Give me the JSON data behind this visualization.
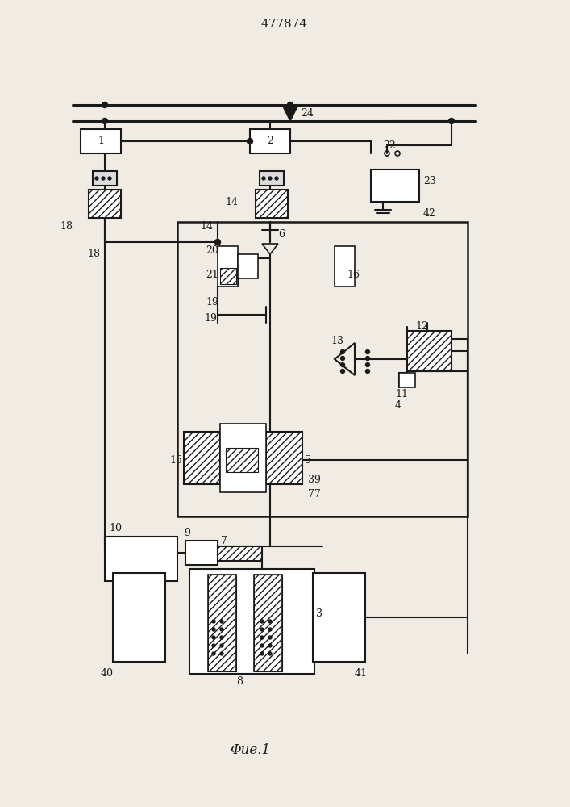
{
  "title": "477874",
  "caption": "Φue.1",
  "background": "#f0ece4",
  "line_color": "#1a1a1a",
  "hatch_color": "#1a1a1a",
  "figsize": [
    7.07,
    10.0
  ],
  "dpi": 100
}
